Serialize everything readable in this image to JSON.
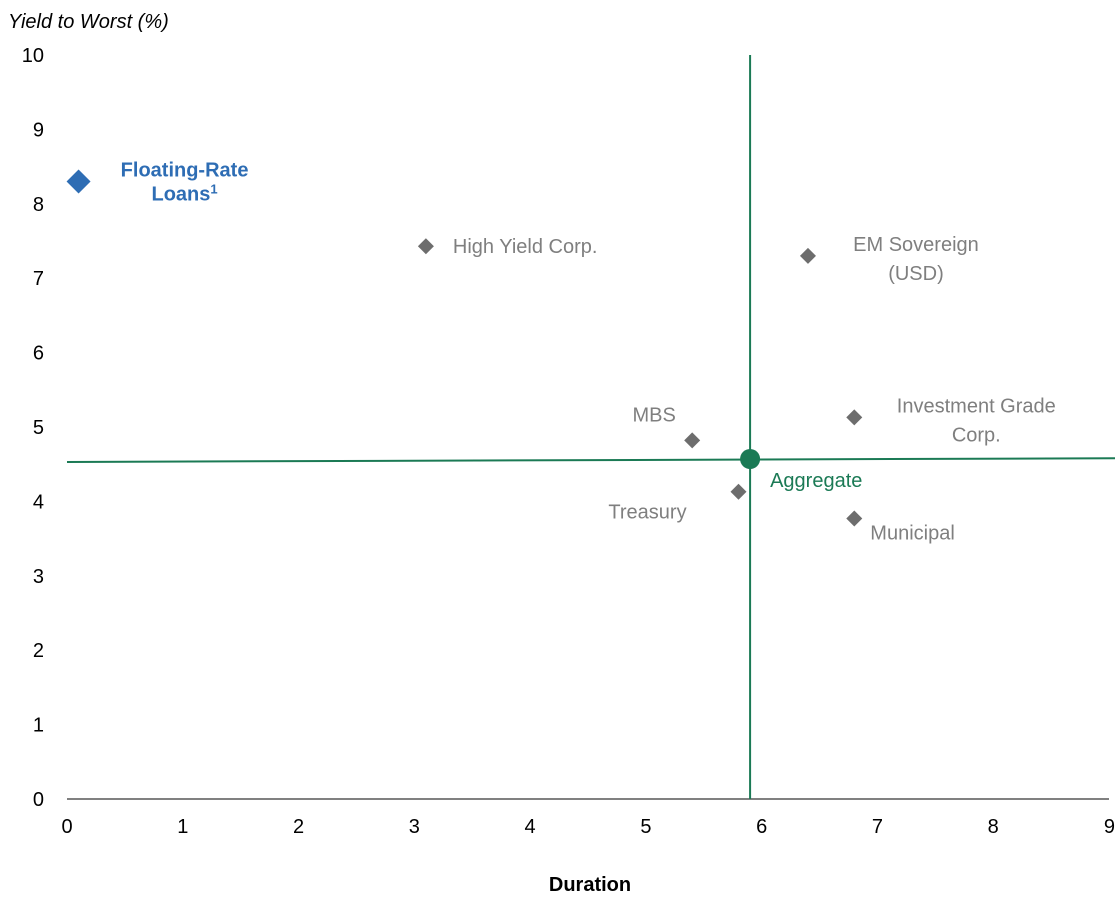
{
  "chart_data": {
    "type": "scatter",
    "title": "",
    "xlabel": "Duration",
    "ylabel": "Yield to Worst (%)",
    "xlim": [
      0,
      9
    ],
    "ylim": [
      0,
      10
    ],
    "x_ticks": [
      0,
      1,
      2,
      3,
      4,
      5,
      6,
      7,
      8,
      9
    ],
    "y_ticks": [
      0,
      1,
      2,
      3,
      4,
      5,
      6,
      7,
      8,
      9,
      10
    ],
    "grid": false,
    "legend": "none",
    "colors": {
      "highlight": "#2e6db4",
      "sector": "#6d6d6d",
      "sector_label": "#7f7f7f",
      "aggregate": "#1b7a55",
      "axis": "#000000"
    },
    "reference_lines": {
      "vertical_x": 5.9,
      "horizontal_y_start": 4.53,
      "horizontal_y_end": 4.58
    },
    "points": [
      {
        "label": [
          "Floating-Rate",
          "Loans"
        ],
        "superscript": "1",
        "x": 0.1,
        "y": 8.3,
        "marker": "diamond",
        "color": "#2e6db4",
        "highlight": true
      },
      {
        "label": [
          "High Yield Corp."
        ],
        "x": 3.1,
        "y": 7.43,
        "marker": "diamond",
        "color": "#6d6d6d"
      },
      {
        "label": [
          "EM Sovereign",
          "(USD)"
        ],
        "x": 6.4,
        "y": 7.3,
        "marker": "diamond",
        "color": "#6d6d6d"
      },
      {
        "label": [
          "MBS"
        ],
        "x": 5.4,
        "y": 4.82,
        "marker": "diamond",
        "color": "#6d6d6d"
      },
      {
        "label": [
          "Investment Grade",
          "Corp."
        ],
        "x": 6.8,
        "y": 5.13,
        "marker": "diamond",
        "color": "#6d6d6d"
      },
      {
        "label": [
          "Aggregate"
        ],
        "x": 5.9,
        "y": 4.57,
        "marker": "circle",
        "color": "#1b7a55"
      },
      {
        "label": [
          "Treasury"
        ],
        "x": 5.8,
        "y": 4.13,
        "marker": "diamond",
        "color": "#6d6d6d"
      },
      {
        "label": [
          "Municipal"
        ],
        "x": 6.8,
        "y": 3.77,
        "marker": "diamond",
        "color": "#6d6d6d"
      }
    ]
  }
}
